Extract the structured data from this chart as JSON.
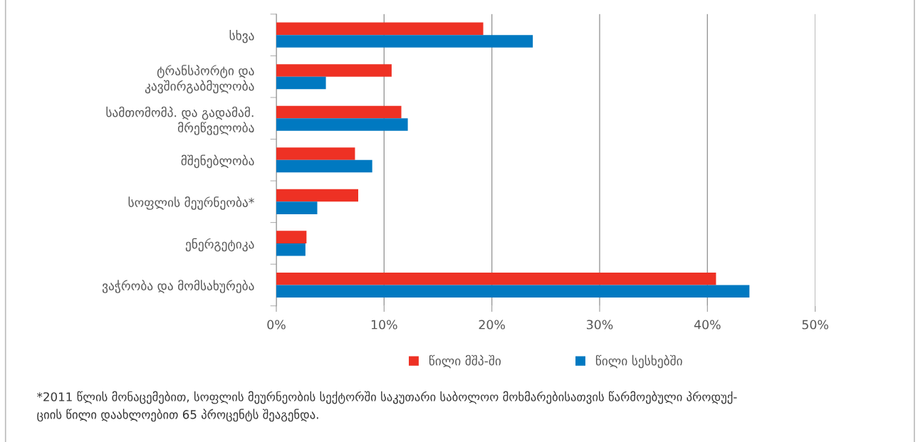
{
  "chart_data": {
    "type": "bar",
    "orientation": "horizontal",
    "categories": [
      "სხვა",
      "ტრანსპორტი და\nკავშირგაბმულობა",
      "სამთომომპ. და გადამამ.\nმრეწველობა",
      "მშენებლობა",
      "სოფლის მეურნეობა*",
      "ენერგეტიკა",
      "ვაჭრობა და მომსახურება"
    ],
    "series": [
      {
        "name": "წილი მშპ-ში",
        "color": "#ee3124",
        "values": [
          19.2,
          10.7,
          11.6,
          7.3,
          7.6,
          2.8,
          40.8
        ]
      },
      {
        "name": "წილი სესხებში",
        "color": "#0079c1",
        "values": [
          23.8,
          4.6,
          12.2,
          8.9,
          3.8,
          2.7,
          43.9
        ]
      }
    ],
    "xlim": [
      0,
      50
    ],
    "xticks": [
      {
        "value": 0,
        "label": "0%"
      },
      {
        "value": 10,
        "label": "10%"
      },
      {
        "value": 20,
        "label": "20%"
      },
      {
        "value": 30,
        "label": "30%"
      },
      {
        "value": 40,
        "label": "40%"
      },
      {
        "value": 50,
        "label": "50%"
      }
    ],
    "grid": "x",
    "legend": "bottom",
    "annotations": [
      "*2011 წლის მონაცემებით, სოფლის მეურნეობის სექტორში საკუთარი საბოლოო მოხმარებისათვის წარმოებული პროდუქ-\nციის წილი დაახლოებით 65 პროცენტს შეაგენდა."
    ]
  }
}
